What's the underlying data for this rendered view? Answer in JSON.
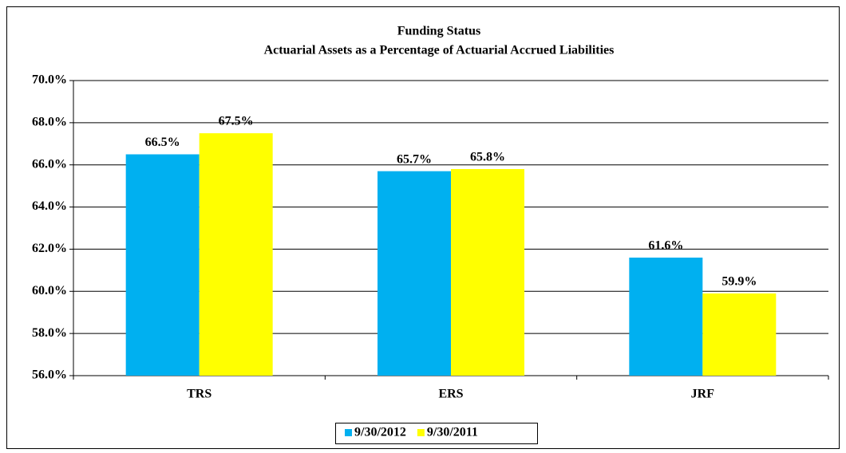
{
  "chart_data": {
    "type": "bar",
    "title": "Funding  Status",
    "subtitle": "Actuarial  Assets as a Percentage  of Actuarial  Accrued Liabilities",
    "categories": [
      "TRS",
      "ERS",
      "JRF"
    ],
    "series": [
      {
        "name": "9/30/2012",
        "color": "#00b0f0",
        "values": [
          66.5,
          65.7,
          61.6
        ],
        "value_labels": [
          "66.5%",
          "65.7%",
          "61.6%"
        ]
      },
      {
        "name": "9/30/2011",
        "color": "#ffff00",
        "values": [
          67.5,
          65.8,
          59.9
        ],
        "value_labels": [
          "67.5%",
          "65.8%",
          "59.9%"
        ]
      }
    ],
    "ylim": [
      56,
      70
    ],
    "yticks": [
      {
        "value": 56,
        "label": "56.0%"
      },
      {
        "value": 58,
        "label": "58.0%"
      },
      {
        "value": 60,
        "label": "60.0%"
      },
      {
        "value": 62,
        "label": "62.0%"
      },
      {
        "value": 64,
        "label": "64.0%"
      },
      {
        "value": 66,
        "label": "66.0%"
      },
      {
        "value": 68,
        "label": "68.0%"
      },
      {
        "value": 70,
        "label": "70.0%"
      }
    ],
    "grid": true,
    "legend": "bottom"
  }
}
